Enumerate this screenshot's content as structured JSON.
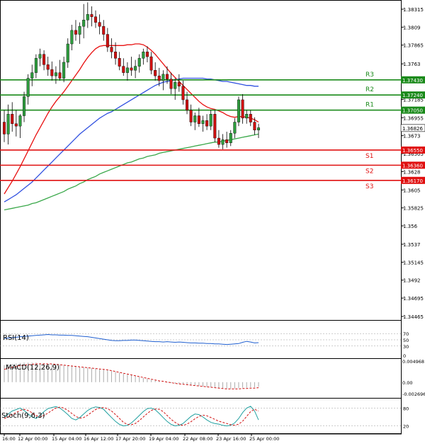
{
  "chart_data": {
    "type": "candlestick",
    "instrument_note": "",
    "y_axis": {
      "ticks": [
        1.38315,
        1.3809,
        1.37865,
        1.3763,
        1.37185,
        1.36955,
        1.3673,
        1.36505,
        1.3628,
        1.3605,
        1.35825,
        1.356,
        1.3537,
        1.35145,
        1.3492,
        1.34695,
        1.34465
      ],
      "ylim": [
        1.34465,
        1.38315
      ]
    },
    "x_axis": {
      "labels": [
        "16:00",
        "12 Apr 00:00",
        "15 Apr 04:00",
        "16 Apr 12:00",
        "17 Apr 20:00",
        "19 Apr 04:00",
        "22 Apr 08:00",
        "23 Apr 16:00",
        "25 Apr 00:00"
      ]
    },
    "current_price": "1.36826",
    "levels": [
      {
        "name": "R3",
        "value": 1.3743,
        "label": "1.37430",
        "color": "#1a8a1a"
      },
      {
        "name": "R2",
        "value": 1.3724,
        "label": "1.37240",
        "color": "#1a8a1a"
      },
      {
        "name": "R1",
        "value": 1.3705,
        "label": "1.37050",
        "color": "#1a8a1a"
      },
      {
        "name": "S1",
        "value": 1.3655,
        "label": "1.36550",
        "color": "#e01010"
      },
      {
        "name": "S2",
        "value": 1.3636,
        "label": "1.36360",
        "color": "#e01010"
      },
      {
        "name": "S3",
        "value": 1.3617,
        "label": "1.36170",
        "color": "#e01010"
      }
    ],
    "candles": [
      {
        "o": 1.369,
        "h": 1.3705,
        "l": 1.3665,
        "c": 1.3675
      },
      {
        "o": 1.3675,
        "h": 1.3712,
        "l": 1.3662,
        "c": 1.37
      },
      {
        "o": 1.37,
        "h": 1.3715,
        "l": 1.3678,
        "c": 1.3688
      },
      {
        "o": 1.3688,
        "h": 1.3705,
        "l": 1.3672,
        "c": 1.3685
      },
      {
        "o": 1.3685,
        "h": 1.37,
        "l": 1.367,
        "c": 1.3698
      },
      {
        "o": 1.3698,
        "h": 1.3728,
        "l": 1.369,
        "c": 1.3722
      },
      {
        "o": 1.3722,
        "h": 1.375,
        "l": 1.3712,
        "c": 1.3745
      },
      {
        "o": 1.3745,
        "h": 1.3762,
        "l": 1.3735,
        "c": 1.3752
      },
      {
        "o": 1.3752,
        "h": 1.3775,
        "l": 1.3745,
        "c": 1.377
      },
      {
        "o": 1.377,
        "h": 1.3782,
        "l": 1.376,
        "c": 1.3775
      },
      {
        "o": 1.3775,
        "h": 1.378,
        "l": 1.3755,
        "c": 1.3762
      },
      {
        "o": 1.3762,
        "h": 1.3772,
        "l": 1.3748,
        "c": 1.3756
      },
      {
        "o": 1.3756,
        "h": 1.3766,
        "l": 1.3742,
        "c": 1.3748
      },
      {
        "o": 1.3748,
        "h": 1.376,
        "l": 1.3738,
        "c": 1.3752
      },
      {
        "o": 1.3752,
        "h": 1.3768,
        "l": 1.3742,
        "c": 1.3745
      },
      {
        "o": 1.3745,
        "h": 1.3772,
        "l": 1.374,
        "c": 1.3765
      },
      {
        "o": 1.3765,
        "h": 1.3795,
        "l": 1.3758,
        "c": 1.3788
      },
      {
        "o": 1.3788,
        "h": 1.3812,
        "l": 1.378,
        "c": 1.3805
      },
      {
        "o": 1.3805,
        "h": 1.3818,
        "l": 1.3792,
        "c": 1.38
      },
      {
        "o": 1.38,
        "h": 1.3815,
        "l": 1.3788,
        "c": 1.381
      },
      {
        "o": 1.381,
        "h": 1.3838,
        "l": 1.3795,
        "c": 1.3818
      },
      {
        "o": 1.3818,
        "h": 1.384,
        "l": 1.3808,
        "c": 1.3825
      },
      {
        "o": 1.3825,
        "h": 1.3835,
        "l": 1.381,
        "c": 1.3822
      },
      {
        "o": 1.3822,
        "h": 1.383,
        "l": 1.3808,
        "c": 1.3815
      },
      {
        "o": 1.3815,
        "h": 1.3825,
        "l": 1.38,
        "c": 1.381
      },
      {
        "o": 1.381,
        "h": 1.3818,
        "l": 1.3792,
        "c": 1.38
      },
      {
        "o": 1.38,
        "h": 1.3808,
        "l": 1.3778,
        "c": 1.3784
      },
      {
        "o": 1.3784,
        "h": 1.3795,
        "l": 1.377,
        "c": 1.3778
      },
      {
        "o": 1.3778,
        "h": 1.379,
        "l": 1.3762,
        "c": 1.377
      },
      {
        "o": 1.377,
        "h": 1.3778,
        "l": 1.3755,
        "c": 1.376
      },
      {
        "o": 1.376,
        "h": 1.377,
        "l": 1.3748,
        "c": 1.3752
      },
      {
        "o": 1.3752,
        "h": 1.3765,
        "l": 1.3742,
        "c": 1.3758
      },
      {
        "o": 1.3758,
        "h": 1.3772,
        "l": 1.3748,
        "c": 1.3755
      },
      {
        "o": 1.3755,
        "h": 1.3768,
        "l": 1.3745,
        "c": 1.376
      },
      {
        "o": 1.376,
        "h": 1.3775,
        "l": 1.3752,
        "c": 1.377
      },
      {
        "o": 1.377,
        "h": 1.3782,
        "l": 1.3762,
        "c": 1.3778
      },
      {
        "o": 1.3778,
        "h": 1.3785,
        "l": 1.3765,
        "c": 1.3772
      },
      {
        "o": 1.3772,
        "h": 1.3778,
        "l": 1.375,
        "c": 1.3755
      },
      {
        "o": 1.3755,
        "h": 1.3765,
        "l": 1.3742,
        "c": 1.3748
      },
      {
        "o": 1.3748,
        "h": 1.3758,
        "l": 1.3735,
        "c": 1.3742
      },
      {
        "o": 1.3742,
        "h": 1.3755,
        "l": 1.373,
        "c": 1.375
      },
      {
        "o": 1.375,
        "h": 1.376,
        "l": 1.3738,
        "c": 1.3744
      },
      {
        "o": 1.3744,
        "h": 1.3752,
        "l": 1.3725,
        "c": 1.3732
      },
      {
        "o": 1.3732,
        "h": 1.3745,
        "l": 1.3718,
        "c": 1.374
      },
      {
        "o": 1.374,
        "h": 1.375,
        "l": 1.3728,
        "c": 1.3735
      },
      {
        "o": 1.3735,
        "h": 1.3742,
        "l": 1.3712,
        "c": 1.3718
      },
      {
        "o": 1.3718,
        "h": 1.3728,
        "l": 1.37,
        "c": 1.3705
      },
      {
        "o": 1.3705,
        "h": 1.3712,
        "l": 1.3685,
        "c": 1.369
      },
      {
        "o": 1.369,
        "h": 1.3702,
        "l": 1.368,
        "c": 1.3698
      },
      {
        "o": 1.3698,
        "h": 1.3708,
        "l": 1.3684,
        "c": 1.3688
      },
      {
        "o": 1.3688,
        "h": 1.3698,
        "l": 1.3678,
        "c": 1.3692
      },
      {
        "o": 1.3692,
        "h": 1.37,
        "l": 1.368,
        "c": 1.3685
      },
      {
        "o": 1.3685,
        "h": 1.3705,
        "l": 1.368,
        "c": 1.37
      },
      {
        "o": 1.37,
        "h": 1.3705,
        "l": 1.3665,
        "c": 1.367
      },
      {
        "o": 1.367,
        "h": 1.368,
        "l": 1.3658,
        "c": 1.3662
      },
      {
        "o": 1.3662,
        "h": 1.3675,
        "l": 1.3656,
        "c": 1.3668
      },
      {
        "o": 1.3668,
        "h": 1.3678,
        "l": 1.3658,
        "c": 1.3664
      },
      {
        "o": 1.3664,
        "h": 1.368,
        "l": 1.366,
        "c": 1.3676
      },
      {
        "o": 1.3676,
        "h": 1.3695,
        "l": 1.367,
        "c": 1.369
      },
      {
        "o": 1.369,
        "h": 1.3722,
        "l": 1.3685,
        "c": 1.3718
      },
      {
        "o": 1.3718,
        "h": 1.3725,
        "l": 1.3688,
        "c": 1.3695
      },
      {
        "o": 1.3695,
        "h": 1.3705,
        "l": 1.3688,
        "c": 1.37
      },
      {
        "o": 1.37,
        "h": 1.3705,
        "l": 1.3685,
        "c": 1.369
      },
      {
        "o": 1.369,
        "h": 1.3696,
        "l": 1.3674,
        "c": 1.368
      },
      {
        "o": 1.368,
        "h": 1.3688,
        "l": 1.367,
        "c": 1.3683
      }
    ],
    "moving_averages": [
      {
        "color": "#e81010",
        "values": [
          1.36,
          1.3608,
          1.3616,
          1.3625,
          1.3634,
          1.3644,
          1.3654,
          1.3664,
          1.3674,
          1.3683,
          1.3692,
          1.3701,
          1.3709,
          1.3716,
          1.3722,
          1.3728,
          1.3735,
          1.3742,
          1.3749,
          1.3756,
          1.3764,
          1.3771,
          1.3777,
          1.3782,
          1.3785,
          1.3786,
          1.3786,
          1.3786,
          1.3786,
          1.3786,
          1.3786,
          1.3787,
          1.3787,
          1.3788,
          1.3788,
          1.3787,
          1.3784,
          1.378,
          1.3775,
          1.3769,
          1.3763,
          1.3757,
          1.3751,
          1.3746,
          1.3741,
          1.3736,
          1.3731,
          1.3726,
          1.3721,
          1.3716,
          1.3712,
          1.3709,
          1.3707,
          1.3706,
          1.3704,
          1.3702,
          1.3699,
          1.3697,
          1.3696,
          1.3697,
          1.3697,
          1.3696,
          1.3695,
          1.3693,
          1.369
        ]
      },
      {
        "color": "#3050e0",
        "values": [
          1.359,
          1.3593,
          1.3596,
          1.3599,
          1.3603,
          1.3607,
          1.3611,
          1.3615,
          1.362,
          1.3625,
          1.363,
          1.3635,
          1.364,
          1.3645,
          1.365,
          1.3655,
          1.366,
          1.3665,
          1.367,
          1.3675,
          1.3679,
          1.3683,
          1.3687,
          1.3691,
          1.3695,
          1.3698,
          1.3701,
          1.3703,
          1.3706,
          1.3709,
          1.3712,
          1.3715,
          1.3718,
          1.3721,
          1.3724,
          1.3727,
          1.373,
          1.3733,
          1.3736,
          1.3738,
          1.374,
          1.3741,
          1.3742,
          1.3743,
          1.3744,
          1.3745,
          1.3745,
          1.3745,
          1.3745,
          1.3745,
          1.3745,
          1.3744,
          1.3744,
          1.3743,
          1.3742,
          1.3741,
          1.3741,
          1.374,
          1.3739,
          1.3738,
          1.3737,
          1.3736,
          1.3736,
          1.3735,
          1.3735
        ]
      },
      {
        "color": "#3aa84a",
        "values": [
          1.358,
          1.3581,
          1.3582,
          1.3583,
          1.3584,
          1.3585,
          1.3586,
          1.3588,
          1.3589,
          1.3591,
          1.3593,
          1.3595,
          1.3597,
          1.3599,
          1.3601,
          1.3603,
          1.3606,
          1.3608,
          1.361,
          1.3613,
          1.3615,
          1.3618,
          1.362,
          1.3622,
          1.3625,
          1.3627,
          1.3629,
          1.3631,
          1.3633,
          1.3635,
          1.3637,
          1.3639,
          1.364,
          1.3642,
          1.3644,
          1.3645,
          1.3647,
          1.3648,
          1.3649,
          1.3651,
          1.3652,
          1.3653,
          1.3654,
          1.3655,
          1.3656,
          1.3657,
          1.3658,
          1.3659,
          1.366,
          1.3661,
          1.3662,
          1.3663,
          1.3664,
          1.3665,
          1.3665,
          1.3666,
          1.3667,
          1.3668,
          1.3669,
          1.367,
          1.3671,
          1.3672,
          1.3673,
          1.3674,
          1.3675
        ]
      }
    ],
    "rsi": {
      "label": "RSI(14)",
      "ticks": [
        70,
        50,
        30,
        0
      ],
      "values": [
        54,
        56,
        57,
        58,
        60,
        61,
        62,
        63,
        64,
        65,
        66,
        67,
        66,
        66,
        65,
        65,
        64,
        64,
        63,
        62,
        61,
        60,
        58,
        56,
        54,
        52,
        50,
        48,
        47,
        47,
        48,
        48,
        49,
        49,
        48,
        47,
        46,
        45,
        44,
        44,
        43,
        44,
        43,
        42,
        43,
        42,
        41,
        40,
        40,
        39,
        39,
        38,
        38,
        37,
        37,
        36,
        35,
        36,
        37,
        38,
        42,
        45,
        43,
        40,
        41
      ]
    },
    "macd": {
      "label": "MACD(12,26,9)",
      "ticks": [
        "0.004968",
        "0.00",
        "-0.002696"
      ],
      "hist": [
        0.004,
        0.0042,
        0.0043,
        0.0044,
        0.0045,
        0.0046,
        0.0046,
        0.0046,
        0.0046,
        0.0045,
        0.0045,
        0.0044,
        0.0043,
        0.0042,
        0.0041,
        0.004,
        0.0039,
        0.0038,
        0.0037,
        0.0036,
        0.0035,
        0.0034,
        0.0033,
        0.0032,
        0.0031,
        0.003,
        0.0028,
        0.0026,
        0.0024,
        0.0022,
        0.002,
        0.0018,
        0.0016,
        0.0014,
        0.0012,
        0.001,
        0.0008,
        0.0006,
        0.0004,
        0.0002,
        0.0,
        -0.0001,
        -0.0002,
        -0.0003,
        -0.0004,
        -0.0005,
        -0.0006,
        -0.0007,
        -0.0008,
        -0.0009,
        -0.001,
        -0.0011,
        -0.0012,
        -0.0013,
        -0.0014,
        -0.0014,
        -0.0015,
        -0.0015,
        -0.0015,
        -0.0014,
        -0.0013,
        -0.0013,
        -0.0012,
        -0.0012,
        -0.0011
      ],
      "signal": [
        0.003,
        0.0033,
        0.0035,
        0.0037,
        0.0039,
        0.004,
        0.0041,
        0.0042,
        0.0043,
        0.0043,
        0.0043,
        0.0043,
        0.0043,
        0.0042,
        0.0041,
        0.004,
        0.0039,
        0.0038,
        0.0037,
        0.0036,
        0.0035,
        0.0034,
        0.0033,
        0.0032,
        0.0031,
        0.003,
        0.0029,
        0.0027,
        0.0025,
        0.0023,
        0.0021,
        0.0019,
        0.0017,
        0.0015,
        0.0013,
        0.0011,
        0.0009,
        0.0007,
        0.0005,
        0.0003,
        0.0002,
        0.0,
        -0.0001,
        -0.0003,
        -0.0004,
        -0.0005,
        -0.0006,
        -0.0007,
        -0.0008,
        -0.0009,
        -0.001,
        -0.0011,
        -0.0012,
        -0.0013,
        -0.0014,
        -0.0015,
        -0.0016,
        -0.0016,
        -0.0016,
        -0.0016,
        -0.0015,
        -0.0015,
        -0.0014,
        -0.0014,
        -0.0013
      ],
      "ymax": 0.004968,
      "ymin": -0.002696
    },
    "stoch": {
      "label": "Stoch(9,6,3)",
      "ticks": [
        80,
        20
      ],
      "k": [
        50,
        60,
        70,
        75,
        80,
        72,
        60,
        50,
        45,
        55,
        68,
        78,
        82,
        85,
        80,
        70,
        58,
        45,
        40,
        48,
        60,
        72,
        80,
        84,
        82,
        76,
        62,
        48,
        35,
        25,
        20,
        22,
        30,
        42,
        55,
        68,
        78,
        80,
        74,
        62,
        48,
        35,
        25,
        20,
        22,
        28,
        40,
        52,
        60,
        58,
        50,
        40,
        32,
        28,
        26,
        22,
        20,
        22,
        30,
        45,
        65,
        80,
        86,
        70,
        40
      ],
      "d": [
        45,
        50,
        58,
        65,
        72,
        76,
        72,
        64,
        55,
        50,
        55,
        63,
        72,
        80,
        83,
        80,
        72,
        62,
        52,
        46,
        48,
        56,
        66,
        75,
        80,
        82,
        78,
        70,
        58,
        45,
        32,
        25,
        24,
        28,
        38,
        50,
        62,
        72,
        77,
        76,
        68,
        55,
        42,
        32,
        24,
        22,
        26,
        34,
        44,
        52,
        56,
        54,
        48,
        42,
        36,
        32,
        28,
        24,
        22,
        26,
        36,
        52,
        68,
        76,
        70
      ]
    }
  }
}
